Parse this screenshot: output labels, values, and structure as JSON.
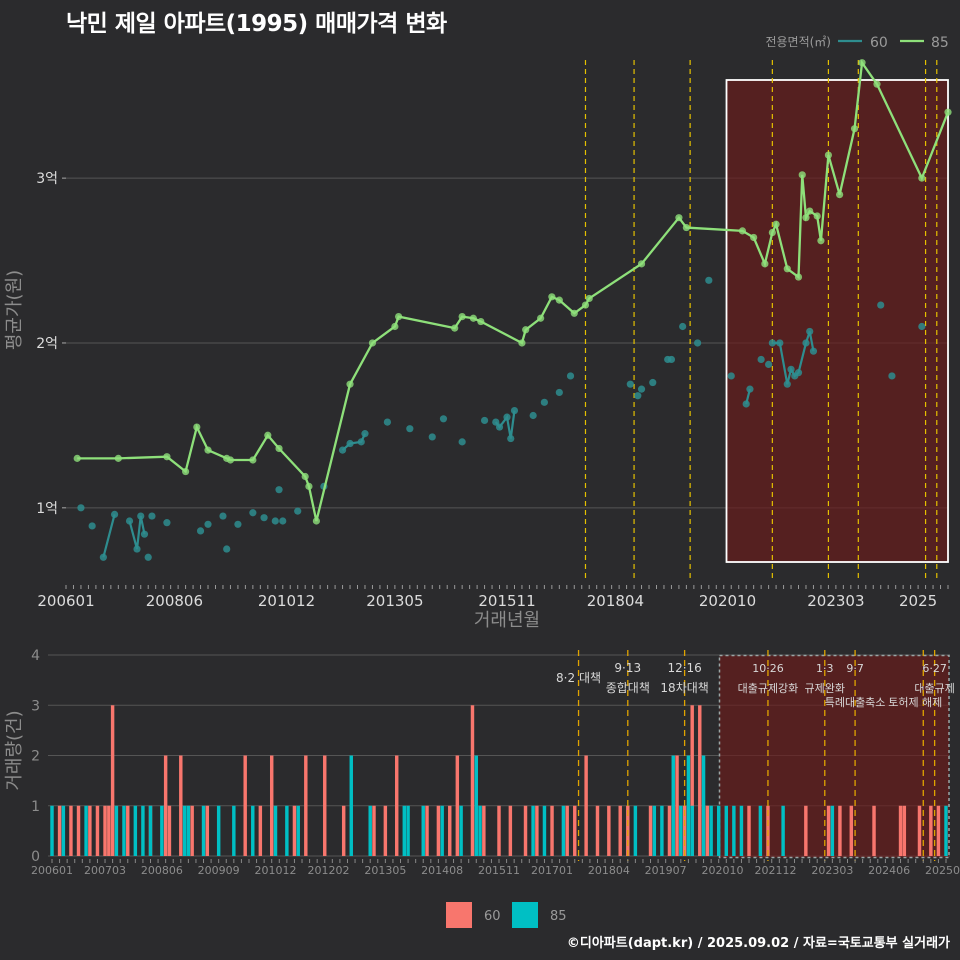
{
  "title": "낙민 제일 아파트(1995) 매매가격 변화",
  "credit": "©디아파트(dapt.kr) / 2025.09.02 / 자료=국토교통부 실거래가",
  "colors": {
    "bg": "#2b2b2d",
    "s60_line": "#2e8d8f",
    "s85_line": "#8ee07a",
    "bar60": "#f8766d",
    "bar85": "#00bfc4",
    "policy": "#e5c100",
    "highlight": "#6b1a1a"
  },
  "chart_data": [
    {
      "type": "line",
      "ylabel": "평균가(원)",
      "xlabel": "거래년월",
      "y_unit": "만원",
      "ylim": [
        5500,
        38500
      ],
      "y_ticks": [
        {
          "v": 10000,
          "label": "1억"
        },
        {
          "v": 20000,
          "label": "2억"
        },
        {
          "v": 30000,
          "label": "3억"
        }
      ],
      "x_ticks": [
        "200601",
        "200806",
        "201012",
        "201305",
        "201511",
        "201804",
        "202010",
        "202303",
        "2025"
      ],
      "legend_title": "전용면적(㎡)",
      "legend_position": "top-right",
      "highlight_period": [
        "2020-10",
        "2025-09"
      ],
      "series": [
        {
          "name": "60",
          "points": [
            [
              "2006-05",
              10000
            ],
            [
              "2006-08",
              8900
            ],
            [
              "2006-11",
              7000
            ],
            [
              "2007-02",
              9600
            ],
            [
              "2007-06",
              9200
            ],
            [
              "2007-08",
              7500
            ],
            [
              "2007-09",
              9500
            ],
            [
              "2007-10",
              8400
            ],
            [
              "2007-11",
              7000
            ],
            [
              "2007-12",
              9500
            ],
            [
              "2008-04",
              9100
            ],
            [
              "2009-01",
              8600
            ],
            [
              "2009-03",
              9000
            ],
            [
              "2009-07",
              9500
            ],
            [
              "2009-08",
              7500
            ],
            [
              "2009-11",
              9000
            ],
            [
              "2010-03",
              9700
            ],
            [
              "2010-06",
              9400
            ],
            [
              "2010-09",
              9200
            ],
            [
              "2010-10",
              11100
            ],
            [
              "2010-11",
              9200
            ],
            [
              "2011-03",
              9800
            ],
            [
              "2011-10",
              11300
            ],
            [
              "2012-03",
              13500
            ],
            [
              "2012-05",
              13900
            ],
            [
              "2012-08",
              14000
            ],
            [
              "2012-09",
              14500
            ],
            [
              "2013-03",
              15200
            ],
            [
              "2013-09",
              14800
            ],
            [
              "2014-03",
              14300
            ],
            [
              "2014-06",
              15400
            ],
            [
              "2014-11",
              14000
            ],
            [
              "2015-05",
              15300
            ],
            [
              "2015-08",
              15200
            ],
            [
              "2015-09",
              14900
            ],
            [
              "2015-11",
              15500
            ],
            [
              "2015-12",
              14200
            ],
            [
              "2016-01",
              15900
            ],
            [
              "2016-06",
              15600
            ],
            [
              "2016-09",
              16400
            ],
            [
              "2017-01",
              17000
            ],
            [
              "2017-04",
              18000
            ],
            [
              "2018-08",
              17500
            ],
            [
              "2018-10",
              16800
            ],
            [
              "2018-11",
              17200
            ],
            [
              "2019-02",
              17600
            ],
            [
              "2019-06",
              19000
            ],
            [
              "2019-07",
              19000
            ],
            [
              "2019-10",
              21000
            ],
            [
              "2020-02",
              20000
            ],
            [
              "2020-05",
              23800
            ],
            [
              "2020-11",
              18000
            ],
            [
              "2021-03",
              16300
            ],
            [
              "2021-04",
              17200
            ],
            [
              "2021-07",
              19000
            ],
            [
              "2021-09",
              18700
            ],
            [
              "2021-10",
              20000
            ],
            [
              "2021-12",
              20000
            ],
            [
              "2022-02",
              17500
            ],
            [
              "2022-03",
              18400
            ],
            [
              "2022-04",
              18000
            ],
            [
              "2022-05",
              18200
            ],
            [
              "2022-07",
              20000
            ],
            [
              "2022-08",
              20700
            ],
            [
              "2022-09",
              19500
            ],
            [
              "2024-03",
              22300
            ],
            [
              "2024-06",
              18000
            ],
            [
              "2025-02",
              21000
            ]
          ],
          "connect": [
            [
              "2006-11",
              "2007-02"
            ],
            [
              "2007-06",
              "2007-08",
              "2007-09",
              "2007-10"
            ],
            [
              "2012-03",
              "2012-05",
              "2012-08",
              "2012-09"
            ],
            [
              "2015-08",
              "2015-09",
              "2015-11",
              "2015-12",
              "2016-01"
            ],
            [
              "2021-03",
              "2021-04"
            ],
            [
              "2021-10",
              "2021-12",
              "2022-02",
              "2022-03",
              "2022-04",
              "2022-05",
              "2022-07",
              "2022-08",
              "2022-09"
            ]
          ]
        },
        {
          "name": "85",
          "points": [
            [
              "2006-04",
              13000
            ],
            [
              "2007-03",
              13000
            ],
            [
              "2008-04",
              13100
            ],
            [
              "2008-09",
              12200
            ],
            [
              "2008-12",
              14900
            ],
            [
              "2009-03",
              13500
            ],
            [
              "2009-08",
              13000
            ],
            [
              "2009-09",
              12900
            ],
            [
              "2010-03",
              12900
            ],
            [
              "2010-07",
              14400
            ],
            [
              "2010-10",
              13600
            ],
            [
              "2011-05",
              11900
            ],
            [
              "2011-06",
              11300
            ],
            [
              "2011-08",
              9200
            ],
            [
              "2012-05",
              17500
            ],
            [
              "2012-11",
              20000
            ],
            [
              "2013-05",
              21000
            ],
            [
              "2013-06",
              21600
            ],
            [
              "2014-09",
              20900
            ],
            [
              "2014-11",
              21600
            ],
            [
              "2015-02",
              21500
            ],
            [
              "2015-04",
              21300
            ],
            [
              "2016-03",
              20000
            ],
            [
              "2016-04",
              20800
            ],
            [
              "2016-08",
              21500
            ],
            [
              "2016-11",
              22800
            ],
            [
              "2017-01",
              22600
            ],
            [
              "2017-05",
              21800
            ],
            [
              "2017-08",
              22300
            ],
            [
              "2017-09",
              22700
            ],
            [
              "2018-11",
              24800
            ],
            [
              "2019-09",
              27600
            ],
            [
              "2019-11",
              27000
            ],
            [
              "2021-02",
              26800
            ],
            [
              "2021-05",
              26400
            ],
            [
              "2021-08",
              24800
            ],
            [
              "2021-10",
              26700
            ],
            [
              "2021-11",
              27200
            ],
            [
              "2022-02",
              24500
            ],
            [
              "2022-05",
              24000
            ],
            [
              "2022-06",
              30200
            ],
            [
              "2022-07",
              27600
            ],
            [
              "2022-08",
              28000
            ],
            [
              "2022-10",
              27700
            ],
            [
              "2022-11",
              26200
            ],
            [
              "2023-01",
              31400
            ],
            [
              "2023-04",
              29000
            ],
            [
              "2023-08",
              33000
            ],
            [
              "2023-10",
              37000
            ],
            [
              "2024-02",
              35700
            ],
            [
              "2025-02",
              30000
            ],
            [
              "2025-09",
              34000
            ]
          ]
        }
      ]
    },
    {
      "type": "bar",
      "ylabel": "거래량(건)",
      "ylim": [
        0,
        4.2
      ],
      "y_ticks": [
        0,
        1,
        2,
        3,
        4
      ],
      "x_ticks": [
        "200601",
        "200703",
        "200806",
        "200909",
        "201012",
        "201202",
        "201305",
        "201408",
        "201511",
        "201701",
        "201804",
        "201907",
        "202010",
        "202112",
        "202303",
        "202406",
        "202509"
      ],
      "legend": [
        "60",
        "85"
      ],
      "legend_position": "bottom",
      "policy_events": [
        {
          "date": "2017-08",
          "label": "8·2 대책"
        },
        {
          "date": "2018-09",
          "label": "9·13\n종합대책"
        },
        {
          "date": "2019-12",
          "label": "12·16\n18차대책"
        },
        {
          "date": "2021-10",
          "label": "10·26\n대출규제강화"
        },
        {
          "date": "2023-01",
          "label": "1·3\n규제완화"
        },
        {
          "date": "2023-09",
          "label": "9·7\n특례대출축소"
        },
        {
          "date": "2025-06",
          "label": "6·27\n대출규제"
        },
        {
          "date": "2025-03",
          "label": "토허제 해제"
        }
      ],
      "bars_60": [
        [
          "2006-03",
          1
        ],
        [
          "2006-06",
          1
        ],
        [
          "2006-08",
          1
        ],
        [
          "2006-11",
          1
        ],
        [
          "2007-01",
          1
        ],
        [
          "2007-03",
          1
        ],
        [
          "2007-04",
          1
        ],
        [
          "2007-05",
          3
        ],
        [
          "2007-09",
          1
        ],
        [
          "2008-03",
          1
        ],
        [
          "2008-07",
          2
        ],
        [
          "2008-08",
          1
        ],
        [
          "2008-11",
          2
        ],
        [
          "2009-02",
          1
        ],
        [
          "2009-06",
          1
        ],
        [
          "2010-04",
          2
        ],
        [
          "2010-08",
          1
        ],
        [
          "2010-11",
          2
        ],
        [
          "2011-05",
          1
        ],
        [
          "2011-08",
          2
        ],
        [
          "2012-01",
          2
        ],
        [
          "2012-06",
          1
        ],
        [
          "2013-02",
          1
        ],
        [
          "2013-05",
          1
        ],
        [
          "2013-08",
          2
        ],
        [
          "2014-04",
          1
        ],
        [
          "2014-07",
          1
        ],
        [
          "2014-10",
          1
        ],
        [
          "2014-12",
          2
        ],
        [
          "2015-04",
          3
        ],
        [
          "2015-07",
          1
        ],
        [
          "2015-11",
          1
        ],
        [
          "2016-02",
          1
        ],
        [
          "2016-06",
          1
        ],
        [
          "2016-09",
          1
        ],
        [
          "2017-01",
          1
        ],
        [
          "2017-05",
          1
        ],
        [
          "2017-07",
          1
        ],
        [
          "2017-10",
          2
        ],
        [
          "2018-01",
          1
        ],
        [
          "2018-04",
          1
        ],
        [
          "2018-07",
          1
        ],
        [
          "2018-09",
          1
        ],
        [
          "2019-03",
          1
        ],
        [
          "2019-08",
          1
        ],
        [
          "2019-10",
          2
        ],
        [
          "2019-12",
          1
        ],
        [
          "2020-02",
          3
        ],
        [
          "2020-04",
          3
        ],
        [
          "2020-06",
          1
        ],
        [
          "2021-05",
          1
        ],
        [
          "2021-10",
          1
        ],
        [
          "2022-08",
          1
        ],
        [
          "2023-02",
          1
        ],
        [
          "2023-05",
          1
        ],
        [
          "2023-08",
          1
        ],
        [
          "2024-02",
          1
        ],
        [
          "2024-09",
          1
        ],
        [
          "2024-10",
          1
        ],
        [
          "2025-02",
          1
        ],
        [
          "2025-05",
          1
        ],
        [
          "2025-07",
          1
        ]
      ],
      "bars_85": [
        [
          "2006-01",
          1
        ],
        [
          "2006-04",
          1
        ],
        [
          "2006-10",
          1
        ],
        [
          "2007-06",
          1
        ],
        [
          "2007-08",
          1
        ],
        [
          "2007-11",
          1
        ],
        [
          "2008-01",
          1
        ],
        [
          "2008-03",
          1
        ],
        [
          "2008-06",
          1
        ],
        [
          "2008-12",
          1
        ],
        [
          "2009-01",
          1
        ],
        [
          "2009-05",
          1
        ],
        [
          "2009-09",
          1
        ],
        [
          "2010-01",
          1
        ],
        [
          "2010-06",
          1
        ],
        [
          "2010-12",
          1
        ],
        [
          "2011-03",
          1
        ],
        [
          "2011-06",
          1
        ],
        [
          "2012-08",
          2
        ],
        [
          "2013-01",
          1
        ],
        [
          "2013-10",
          1
        ],
        [
          "2013-11",
          1
        ],
        [
          "2014-03",
          1
        ],
        [
          "2014-08",
          1
        ],
        [
          "2015-01",
          1
        ],
        [
          "2015-05",
          2
        ],
        [
          "2015-06",
          1
        ],
        [
          "2016-08",
          1
        ],
        [
          "2016-11",
          1
        ],
        [
          "2017-04",
          1
        ],
        [
          "2018-11",
          1
        ],
        [
          "2019-04",
          1
        ],
        [
          "2019-06",
          1
        ],
        [
          "2019-09",
          2
        ],
        [
          "2019-11",
          1
        ],
        [
          "2020-01",
          2
        ],
        [
          "2020-02",
          1
        ],
        [
          "2020-05",
          2
        ],
        [
          "2020-07",
          1
        ],
        [
          "2020-09",
          1
        ],
        [
          "2020-11",
          1
        ],
        [
          "2021-01",
          1
        ],
        [
          "2021-03",
          1
        ],
        [
          "2021-08",
          1
        ],
        [
          "2022-02",
          1
        ],
        [
          "2023-03",
          1
        ],
        [
          "2025-09",
          1
        ]
      ]
    }
  ]
}
